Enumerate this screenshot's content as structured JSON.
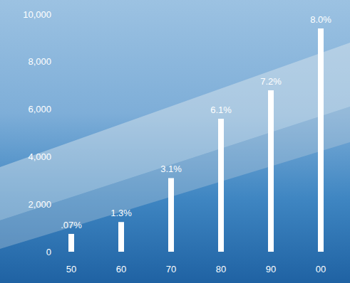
{
  "chart_data": {
    "type": "bar",
    "categories": [
      "50",
      "60",
      "70",
      "80",
      "90",
      "00"
    ],
    "values": [
      750,
      1250,
      3100,
      5600,
      6800,
      9400
    ],
    "annotations": [
      ".07%",
      "1.3%",
      "3.1%",
      "6.1%",
      "7.2%",
      "8.0%"
    ],
    "color": "#ffffff",
    "ylim": [
      0,
      10000
    ],
    "yticks": [
      0,
      {
        "value": 2000,
        "label": "2,000"
      },
      {
        "value": 4000,
        "label": "4,000"
      },
      {
        "value": 6000,
        "label": "6,000"
      },
      {
        "value": 8000,
        "label": "8,000"
      },
      {
        "value": 10000,
        "label": "10,000"
      }
    ],
    "grid": false
  }
}
